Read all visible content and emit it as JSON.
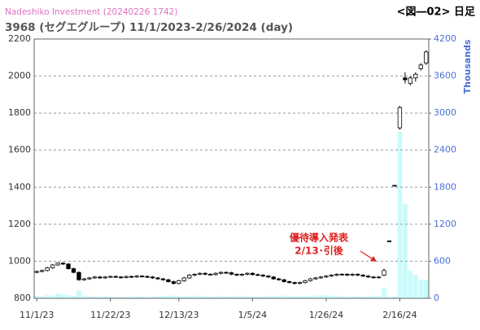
{
  "chart_data": {
    "type": "candlestick",
    "title": "Nadeshiko Investment (20240226 1742)",
    "subtitle": "3968 (セグエグループ) 11/1/2023-2/26/2024 (day)",
    "figure_label": "<図―02> 日足",
    "y2_label": "Thousands",
    "annotation": [
      "優待導入発表",
      "2/13･引後"
    ],
    "categories": [
      "11/1/23",
      null,
      null,
      null,
      null,
      null,
      null,
      null,
      null,
      null,
      null,
      null,
      null,
      null,
      "11/22/23",
      null,
      null,
      null,
      null,
      null,
      null,
      null,
      null,
      null,
      null,
      null,
      null,
      "12/13/23",
      null,
      null,
      null,
      null,
      null,
      null,
      null,
      null,
      null,
      null,
      null,
      null,
      null,
      "1/5/24",
      null,
      null,
      null,
      null,
      null,
      null,
      null,
      null,
      null,
      null,
      null,
      null,
      null,
      "1/26/24",
      null,
      null,
      null,
      null,
      null,
      null,
      null,
      null,
      null,
      null,
      null,
      null,
      null,
      "2/16/24",
      null,
      null,
      null,
      null,
      null
    ],
    "open": [
      940,
      945,
      950,
      965,
      980,
      990,
      985,
      960,
      940,
      900,
      905,
      910,
      915,
      910,
      915,
      918,
      915,
      912,
      918,
      915,
      920,
      918,
      915,
      910,
      905,
      900,
      890,
      880,
      895,
      910,
      925,
      930,
      935,
      930,
      928,
      935,
      940,
      938,
      930,
      925,
      930,
      935,
      928,
      925,
      920,
      915,
      905,
      900,
      890,
      885,
      880,
      885,
      895,
      905,
      910,
      915,
      920,
      925,
      930,
      930,
      925,
      930,
      925,
      920,
      915,
      912,
      925,
      1110,
      1410,
      1720,
      1990,
      1960,
      1990,
      2040,
      2070
    ],
    "high": [
      950,
      955,
      970,
      985,
      995,
      995,
      990,
      965,
      945,
      910,
      915,
      920,
      920,
      920,
      923,
      923,
      920,
      923,
      923,
      925,
      925,
      923,
      920,
      915,
      910,
      905,
      895,
      900,
      915,
      930,
      935,
      940,
      940,
      935,
      940,
      945,
      945,
      943,
      935,
      935,
      940,
      940,
      933,
      930,
      925,
      920,
      910,
      905,
      895,
      890,
      890,
      900,
      910,
      915,
      920,
      925,
      930,
      935,
      935,
      935,
      935,
      935,
      930,
      925,
      920,
      920,
      960,
      1110,
      1410,
      1840,
      2020,
      2000,
      2020,
      2070,
      2140
    ],
    "low": [
      935,
      940,
      945,
      960,
      975,
      980,
      955,
      935,
      895,
      895,
      900,
      905,
      905,
      905,
      910,
      910,
      907,
      907,
      910,
      910,
      913,
      910,
      905,
      900,
      895,
      885,
      875,
      875,
      890,
      905,
      920,
      925,
      925,
      923,
      923,
      930,
      933,
      925,
      920,
      920,
      925,
      923,
      920,
      915,
      910,
      900,
      895,
      885,
      880,
      875,
      875,
      880,
      890,
      900,
      905,
      910,
      915,
      920,
      925,
      920,
      920,
      920,
      915,
      910,
      907,
      907,
      920,
      1110,
      1410,
      1710,
      1960,
      1950,
      1970,
      2030,
      2060
    ],
    "close": [
      945,
      950,
      965,
      980,
      990,
      985,
      960,
      940,
      900,
      905,
      910,
      915,
      910,
      915,
      918,
      915,
      912,
      918,
      915,
      920,
      918,
      915,
      910,
      905,
      900,
      890,
      880,
      895,
      910,
      925,
      930,
      935,
      930,
      928,
      935,
      940,
      938,
      930,
      925,
      930,
      935,
      928,
      925,
      920,
      915,
      905,
      900,
      890,
      885,
      880,
      885,
      895,
      905,
      910,
      915,
      920,
      925,
      930,
      930,
      925,
      930,
      925,
      920,
      915,
      912,
      915,
      950,
      1110,
      1410,
      1830,
      1980,
      1990,
      2010,
      2060,
      2130
    ],
    "volume": [
      40,
      30,
      50,
      45,
      80,
      60,
      50,
      40,
      130,
      40,
      30,
      25,
      30,
      25,
      20,
      25,
      20,
      25,
      20,
      30,
      25,
      20,
      25,
      30,
      35,
      40,
      45,
      35,
      30,
      40,
      45,
      35,
      30,
      25,
      30,
      35,
      30,
      25,
      30,
      35,
      30,
      25,
      20,
      25,
      30,
      35,
      40,
      45,
      40,
      35,
      30,
      35,
      40,
      45,
      50,
      45,
      40,
      35,
      30,
      30,
      25,
      30,
      25,
      30,
      35,
      40,
      160,
      20,
      30,
      2700,
      1530,
      450,
      380,
      300,
      300
    ],
    "ylim": [
      800,
      2200
    ],
    "yticks": [
      800,
      1000,
      1200,
      1400,
      1600,
      1800,
      2000,
      2200
    ],
    "y2lim": [
      0,
      4200
    ],
    "y2ticks": [
      0,
      600,
      1200,
      1800,
      2400,
      3000,
      3600,
      4200
    ],
    "grid": true,
    "candle_color": "#000000",
    "volume_color": "#c8fcfc"
  }
}
